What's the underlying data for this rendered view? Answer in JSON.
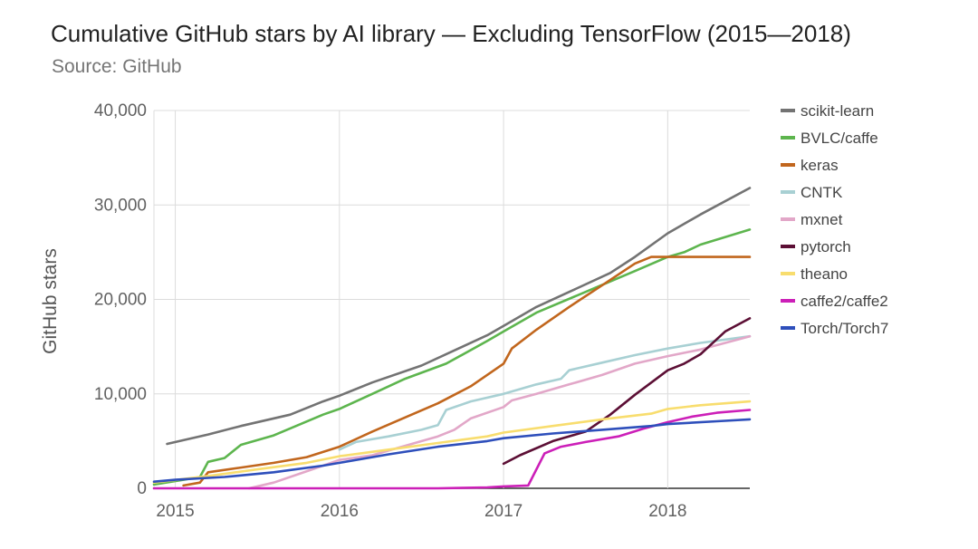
{
  "chart_data": {
    "type": "line",
    "title": "Cumulative GitHub stars by AI library — Excluding TensorFlow (2015—2018)",
    "subtitle": "Source: GitHub",
    "xlabel": "",
    "ylabel": "GitHub stars",
    "x_ticks": [
      "2015",
      "2016",
      "2017",
      "2018"
    ],
    "y_ticks": [
      "0",
      "10,000",
      "20,000",
      "30,000",
      "40,000"
    ],
    "xlim": [
      2014.87,
      2018.5
    ],
    "ylim": [
      0,
      40000
    ],
    "grid": true,
    "legend_position": "right",
    "series": [
      {
        "name": "scikit-learn",
        "color": "#737373",
        "points": [
          [
            2014.95,
            4700
          ],
          [
            2015.2,
            5700
          ],
          [
            2015.4,
            6600
          ],
          [
            2015.7,
            7800
          ],
          [
            2015.9,
            9200
          ],
          [
            2016.0,
            9800
          ],
          [
            2016.2,
            11200
          ],
          [
            2016.5,
            13000
          ],
          [
            2016.7,
            14600
          ],
          [
            2016.9,
            16200
          ],
          [
            2017.0,
            17200
          ],
          [
            2017.2,
            19200
          ],
          [
            2017.4,
            20800
          ],
          [
            2017.65,
            22800
          ],
          [
            2017.8,
            24500
          ],
          [
            2018.0,
            27000
          ],
          [
            2018.2,
            29000
          ],
          [
            2018.5,
            31800
          ]
        ]
      },
      {
        "name": "BVLC/caffe",
        "color": "#5db54e",
        "points": [
          [
            2014.87,
            400
          ],
          [
            2015.05,
            900
          ],
          [
            2015.15,
            1200
          ],
          [
            2015.2,
            2800
          ],
          [
            2015.3,
            3200
          ],
          [
            2015.4,
            4600
          ],
          [
            2015.6,
            5600
          ],
          [
            2015.9,
            7800
          ],
          [
            2016.0,
            8400
          ],
          [
            2016.2,
            10000
          ],
          [
            2016.4,
            11600
          ],
          [
            2016.65,
            13200
          ],
          [
            2016.9,
            15600
          ],
          [
            2017.0,
            16600
          ],
          [
            2017.2,
            18600
          ],
          [
            2017.5,
            20800
          ],
          [
            2017.8,
            23000
          ],
          [
            2018.0,
            24500
          ],
          [
            2018.1,
            25000
          ],
          [
            2018.2,
            25800
          ],
          [
            2018.5,
            27400
          ]
        ]
      },
      {
        "name": "keras",
        "color": "#c1661d",
        "points": [
          [
            2015.05,
            300
          ],
          [
            2015.15,
            600
          ],
          [
            2015.2,
            1700
          ],
          [
            2015.4,
            2200
          ],
          [
            2015.6,
            2700
          ],
          [
            2015.8,
            3300
          ],
          [
            2016.0,
            4400
          ],
          [
            2016.2,
            6000
          ],
          [
            2016.4,
            7500
          ],
          [
            2016.6,
            9000
          ],
          [
            2016.8,
            10800
          ],
          [
            2017.0,
            13200
          ],
          [
            2017.05,
            14800
          ],
          [
            2017.2,
            16800
          ],
          [
            2017.4,
            19200
          ],
          [
            2017.6,
            21500
          ],
          [
            2017.8,
            23800
          ],
          [
            2017.9,
            24500
          ],
          [
            2018.0,
            24500
          ],
          [
            2018.5,
            24500
          ]
        ]
      },
      {
        "name": "CNTK",
        "color": "#a8d0d3",
        "points": [
          [
            2016.0,
            4100
          ],
          [
            2016.1,
            4900
          ],
          [
            2016.3,
            5500
          ],
          [
            2016.5,
            6200
          ],
          [
            2016.6,
            6700
          ],
          [
            2016.65,
            8300
          ],
          [
            2016.8,
            9200
          ],
          [
            2017.0,
            10000
          ],
          [
            2017.2,
            11000
          ],
          [
            2017.35,
            11600
          ],
          [
            2017.4,
            12500
          ],
          [
            2017.6,
            13300
          ],
          [
            2017.8,
            14100
          ],
          [
            2018.0,
            14800
          ],
          [
            2018.2,
            15400
          ],
          [
            2018.5,
            16100
          ]
        ]
      },
      {
        "name": "mxnet",
        "color": "#e2a7c8",
        "points": [
          [
            2015.45,
            0
          ],
          [
            2015.6,
            600
          ],
          [
            2015.75,
            1500
          ],
          [
            2015.9,
            2400
          ],
          [
            2016.0,
            3000
          ],
          [
            2016.2,
            3500
          ],
          [
            2016.4,
            4500
          ],
          [
            2016.6,
            5500
          ],
          [
            2016.7,
            6200
          ],
          [
            2016.8,
            7400
          ],
          [
            2017.0,
            8600
          ],
          [
            2017.05,
            9300
          ],
          [
            2017.2,
            10000
          ],
          [
            2017.4,
            11000
          ],
          [
            2017.6,
            12000
          ],
          [
            2017.8,
            13200
          ],
          [
            2018.0,
            14000
          ],
          [
            2018.2,
            14700
          ],
          [
            2018.5,
            16100
          ]
        ]
      },
      {
        "name": "pytorch",
        "color": "#5c0f35",
        "points": [
          [
            2017.0,
            2600
          ],
          [
            2017.1,
            3500
          ],
          [
            2017.3,
            5000
          ],
          [
            2017.5,
            6000
          ],
          [
            2017.65,
            7800
          ],
          [
            2017.8,
            9900
          ],
          [
            2018.0,
            12500
          ],
          [
            2018.1,
            13200
          ],
          [
            2018.2,
            14200
          ],
          [
            2018.35,
            16600
          ],
          [
            2018.5,
            18000
          ]
        ]
      },
      {
        "name": "theano",
        "color": "#f8dd6e",
        "points": [
          [
            2014.87,
            600
          ],
          [
            2015.2,
            1300
          ],
          [
            2015.5,
            2000
          ],
          [
            2015.8,
            2700
          ],
          [
            2016.0,
            3400
          ],
          [
            2016.3,
            4100
          ],
          [
            2016.6,
            4800
          ],
          [
            2016.9,
            5500
          ],
          [
            2017.0,
            5900
          ],
          [
            2017.3,
            6600
          ],
          [
            2017.6,
            7300
          ],
          [
            2017.9,
            7900
          ],
          [
            2018.0,
            8400
          ],
          [
            2018.2,
            8800
          ],
          [
            2018.5,
            9200
          ]
        ]
      },
      {
        "name": "caffe2/caffe2",
        "color": "#cc1fb8",
        "points": [
          [
            2014.87,
            0
          ],
          [
            2016.6,
            0
          ],
          [
            2016.9,
            100
          ],
          [
            2017.0,
            200
          ],
          [
            2017.15,
            300
          ],
          [
            2017.25,
            3700
          ],
          [
            2017.35,
            4400
          ],
          [
            2017.5,
            4900
          ],
          [
            2017.7,
            5500
          ],
          [
            2017.85,
            6300
          ],
          [
            2018.0,
            7000
          ],
          [
            2018.15,
            7600
          ],
          [
            2018.3,
            8000
          ],
          [
            2018.5,
            8300
          ]
        ]
      },
      {
        "name": "Torch/Torch7",
        "color": "#2e4fbb",
        "points": [
          [
            2014.87,
            700
          ],
          [
            2015.0,
            900
          ],
          [
            2015.3,
            1200
          ],
          [
            2015.6,
            1700
          ],
          [
            2015.9,
            2400
          ],
          [
            2016.0,
            2700
          ],
          [
            2016.3,
            3600
          ],
          [
            2016.6,
            4400
          ],
          [
            2016.9,
            5000
          ],
          [
            2017.0,
            5300
          ],
          [
            2017.3,
            5800
          ],
          [
            2017.6,
            6200
          ],
          [
            2017.9,
            6600
          ],
          [
            2018.0,
            6800
          ],
          [
            2018.3,
            7100
          ],
          [
            2018.5,
            7300
          ]
        ]
      }
    ]
  }
}
